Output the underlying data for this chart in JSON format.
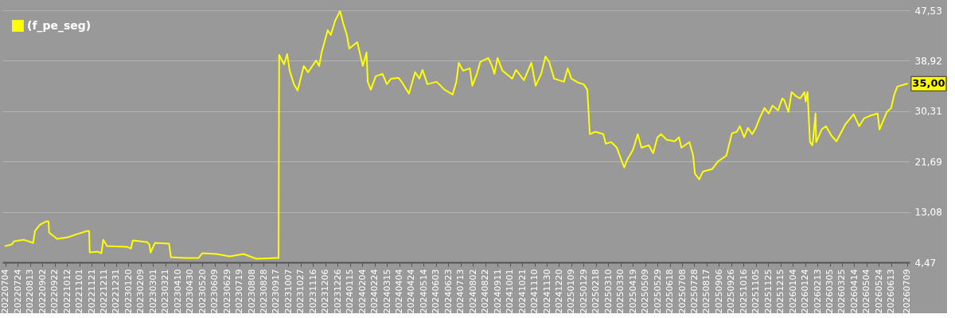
{
  "chart_data": {
    "type": "line",
    "series": [
      {
        "name": "(f_pe_seg)",
        "color": "#ffff00",
        "x": [
          "2022-07-04",
          "2022-07-14",
          "2022-07-18",
          "2022-08-03",
          "2022-08-18",
          "2022-08-21",
          "2022-08-29",
          "2022-09-08",
          "2022-09-12",
          "2022-09-13",
          "2022-09-26",
          "2022-10-13",
          "2022-10-28",
          "2022-11-14",
          "2022-11-17",
          "2022-11-18",
          "2022-12-01",
          "2022-12-07",
          "2022-12-10",
          "2022-12-16",
          "2023-01-18",
          "2023-01-24",
          "2023-01-27",
          "2023-02-19",
          "2023-02-23",
          "2023-02-25",
          "2023-03-04",
          "2023-03-27",
          "2023-03-30",
          "2023-04-22",
          "2023-05-14",
          "2023-05-20",
          "2023-06-12",
          "2023-07-04",
          "2023-07-26",
          "2023-08-16",
          "2023-09-17",
          "2023-09-21",
          "2023-09-22",
          "2023-09-30",
          "2023-10-05",
          "2023-10-09",
          "2023-10-16",
          "2023-10-22",
          "2023-11-01",
          "2023-11-08",
          "2023-11-21",
          "2023-11-26",
          "2023-11-30",
          "2023-12-06",
          "2023-12-10",
          "2023-12-15",
          "2023-12-22",
          "2023-12-30",
          "2024-01-04",
          "2024-01-10",
          "2024-01-14",
          "2024-01-27",
          "2024-02-05",
          "2024-02-11",
          "2024-02-13",
          "2024-02-18",
          "2024-02-26",
          "2024-03-08",
          "2024-03-15",
          "2024-03-22",
          "2024-04-03",
          "2024-04-09",
          "2024-04-20",
          "2024-04-30",
          "2024-05-07",
          "2024-05-12",
          "2024-05-20",
          "2024-06-04",
          "2024-06-17",
          "2024-06-30",
          "2024-07-06",
          "2024-07-10",
          "2024-07-17",
          "2024-07-28",
          "2024-08-01",
          "2024-08-08",
          "2024-08-14",
          "2024-08-27",
          "2024-09-02",
          "2024-09-06",
          "2024-09-11",
          "2024-09-19",
          "2024-10-05",
          "2024-10-11",
          "2024-10-24",
          "2024-11-05",
          "2024-11-12",
          "2024-11-21",
          "2024-11-28",
          "2024-12-04",
          "2024-12-12",
          "2024-12-28",
          "2025-01-03",
          "2025-01-09",
          "2025-01-20",
          "2025-01-29",
          "2025-02-04",
          "2025-02-08",
          "2025-02-17",
          "2025-03-02",
          "2025-03-06",
          "2025-03-15",
          "2025-03-24",
          "2025-04-01",
          "2025-04-05",
          "2025-04-10",
          "2025-04-19",
          "2025-04-27",
          "2025-05-03",
          "2025-05-15",
          "2025-05-22",
          "2025-05-29",
          "2025-06-04",
          "2025-06-13",
          "2025-06-26",
          "2025-07-03",
          "2025-07-07",
          "2025-07-20",
          "2025-07-26",
          "2025-07-29",
          "2025-08-05",
          "2025-08-11",
          "2025-08-26",
          "2025-09-05",
          "2025-09-18",
          "2025-09-27",
          "2025-10-05",
          "2025-10-10",
          "2025-10-17",
          "2025-10-23",
          "2025-10-30",
          "2025-11-05",
          "2025-11-11",
          "2025-11-19",
          "2025-11-26",
          "2025-12-02",
          "2025-12-11",
          "2025-12-18",
          "2025-12-21",
          "2025-12-28",
          "2026-01-02",
          "2026-01-09",
          "2026-01-16",
          "2026-01-23",
          "2026-01-25",
          "2026-01-28",
          "2026-02-01",
          "2026-02-05",
          "2026-02-10",
          "2026-02-11",
          "2026-02-20",
          "2026-02-27",
          "2026-03-08",
          "2026-03-16",
          "2026-03-31",
          "2026-04-13",
          "2026-04-22",
          "2026-04-30",
          "2026-05-09",
          "2026-05-22",
          "2026-05-25",
          "2026-06-06",
          "2026-06-13",
          "2026-06-18",
          "2026-06-23",
          "2026-07-09"
        ],
        "values": [
          7.25,
          7.52,
          8.06,
          8.33,
          7.79,
          9.83,
          10.91,
          11.45,
          11.45,
          9.56,
          8.47,
          8.74,
          9.28,
          9.83,
          9.83,
          6.17,
          6.3,
          6.03,
          8.33,
          7.25,
          7.11,
          6.84,
          8.2,
          7.93,
          7.52,
          6.17,
          7.79,
          7.66,
          5.35,
          5.22,
          5.22,
          6.03,
          5.89,
          5.49,
          5.89,
          5.08,
          5.22,
          5.22,
          39.93,
          38.3,
          40.07,
          37.22,
          34.91,
          33.83,
          38.03,
          36.95,
          38.98,
          38.03,
          40.34,
          42.64,
          44.13,
          43.32,
          45.76,
          47.39,
          45.35,
          43.32,
          41.01,
          42.1,
          38.03,
          40.34,
          35.32,
          33.96,
          36.27,
          36.68,
          34.91,
          35.86,
          36.0,
          35.18,
          33.29,
          36.95,
          35.86,
          37.35,
          34.91,
          35.32,
          33.96,
          33.15,
          35.32,
          38.57,
          37.22,
          37.62,
          34.64,
          36.54,
          38.71,
          39.39,
          38.03,
          36.68,
          39.39,
          37.22,
          35.86,
          37.35,
          35.59,
          38.57,
          34.64,
          36.68,
          39.66,
          38.71,
          35.86,
          35.32,
          37.62,
          35.86,
          35.18,
          34.91,
          33.96,
          26.37,
          26.78,
          26.37,
          24.74,
          25.01,
          24.06,
          21.76,
          20.67,
          22.03,
          23.66,
          26.37,
          24.06,
          24.47,
          23.12,
          25.83,
          26.37,
          25.42,
          25.15,
          25.83,
          24.06,
          25.01,
          22.71,
          19.59,
          18.64,
          20.0,
          20.4,
          21.76,
          22.71,
          26.51,
          26.78,
          27.73,
          25.83,
          27.45,
          26.37,
          27.45,
          29.08,
          30.84,
          29.9,
          31.25,
          30.44,
          32.47,
          32.2,
          30.17,
          33.56,
          32.88,
          32.47,
          33.56,
          31.93,
          33.56,
          25.01,
          24.47,
          29.9,
          25.01,
          27.18,
          27.73,
          26.1,
          25.15,
          28.13,
          29.76,
          27.73,
          29.08,
          29.49,
          29.9,
          27.18,
          30.17,
          30.84,
          33.15,
          34.51,
          35.0
        ]
      }
    ],
    "ylim": [
      4.47,
      47.53
    ],
    "yticks": [
      {
        "value": 4.47,
        "label": "4,47"
      },
      {
        "value": 13.08,
        "label": "13,08"
      },
      {
        "value": 21.69,
        "label": "21,69"
      },
      {
        "value": 30.31,
        "label": "30,31"
      },
      {
        "value": 38.92,
        "label": "38,92"
      },
      {
        "value": 47.53,
        "label": "47,53"
      }
    ],
    "xlim": [
      "2022-06-29",
      "2026-07-13"
    ],
    "xticks": [
      {
        "value": "2022-07-04",
        "label": "20220704"
      },
      {
        "value": "2022-07-24",
        "label": "20220724"
      },
      {
        "value": "2022-08-13",
        "label": "20220813"
      },
      {
        "value": "2022-09-02",
        "label": "20220902"
      },
      {
        "value": "2022-09-22",
        "label": "20220922"
      },
      {
        "value": "2022-10-12",
        "label": "20221012"
      },
      {
        "value": "2022-11-01",
        "label": "20221101"
      },
      {
        "value": "2022-11-21",
        "label": "20221121"
      },
      {
        "value": "2022-12-11",
        "label": "20221211"
      },
      {
        "value": "2022-12-31",
        "label": "20221231"
      },
      {
        "value": "2023-01-20",
        "label": "20230120"
      },
      {
        "value": "2023-02-09",
        "label": "20230209"
      },
      {
        "value": "2023-03-01",
        "label": "20230301"
      },
      {
        "value": "2023-03-21",
        "label": "20230321"
      },
      {
        "value": "2023-04-10",
        "label": "20230410"
      },
      {
        "value": "2023-04-30",
        "label": "20230430"
      },
      {
        "value": "2023-05-20",
        "label": "20230520"
      },
      {
        "value": "2023-06-09",
        "label": "20230609"
      },
      {
        "value": "2023-06-29",
        "label": "20230629"
      },
      {
        "value": "2023-07-19",
        "label": "20230719"
      },
      {
        "value": "2023-08-08",
        "label": "20230808"
      },
      {
        "value": "2023-08-28",
        "label": "20230828"
      },
      {
        "value": "2023-09-17",
        "label": "20230917"
      },
      {
        "value": "2023-10-07",
        "label": "20231007"
      },
      {
        "value": "2023-10-27",
        "label": "20231027"
      },
      {
        "value": "2023-11-16",
        "label": "20231116"
      },
      {
        "value": "2023-12-06",
        "label": "20231206"
      },
      {
        "value": "2023-12-26",
        "label": "20231226"
      },
      {
        "value": "2024-01-15",
        "label": "20240115"
      },
      {
        "value": "2024-02-04",
        "label": "20240204"
      },
      {
        "value": "2024-02-24",
        "label": "20240224"
      },
      {
        "value": "2024-03-15",
        "label": "20240315"
      },
      {
        "value": "2024-04-04",
        "label": "20240404"
      },
      {
        "value": "2024-04-24",
        "label": "20240424"
      },
      {
        "value": "2024-05-14",
        "label": "20240514"
      },
      {
        "value": "2024-06-03",
        "label": "20240603"
      },
      {
        "value": "2024-06-23",
        "label": "20240623"
      },
      {
        "value": "2024-07-13",
        "label": "20240713"
      },
      {
        "value": "2024-08-02",
        "label": "20240802"
      },
      {
        "value": "2024-08-22",
        "label": "20240822"
      },
      {
        "value": "2024-09-11",
        "label": "20240911"
      },
      {
        "value": "2024-10-01",
        "label": "20241001"
      },
      {
        "value": "2024-10-21",
        "label": "20241021"
      },
      {
        "value": "2024-11-10",
        "label": "20241110"
      },
      {
        "value": "2024-11-30",
        "label": "20241130"
      },
      {
        "value": "2024-12-20",
        "label": "20241220"
      },
      {
        "value": "2025-01-09",
        "label": "20250109"
      },
      {
        "value": "2025-01-29",
        "label": "20250129"
      },
      {
        "value": "2025-02-18",
        "label": "20250218"
      },
      {
        "value": "2025-03-10",
        "label": "20250310"
      },
      {
        "value": "2025-03-30",
        "label": "20250330"
      },
      {
        "value": "2025-04-19",
        "label": "20250419"
      },
      {
        "value": "2025-05-09",
        "label": "20250509"
      },
      {
        "value": "2025-05-29",
        "label": "20250529"
      },
      {
        "value": "2025-06-18",
        "label": "20250618"
      },
      {
        "value": "2025-07-08",
        "label": "20250708"
      },
      {
        "value": "2025-07-28",
        "label": "20250728"
      },
      {
        "value": "2025-08-17",
        "label": "20250817"
      },
      {
        "value": "2025-09-06",
        "label": "20250906"
      },
      {
        "value": "2025-09-26",
        "label": "20250926"
      },
      {
        "value": "2025-10-16",
        "label": "20251016"
      },
      {
        "value": "2025-11-05",
        "label": "20251105"
      },
      {
        "value": "2025-11-25",
        "label": "20251125"
      },
      {
        "value": "2025-12-15",
        "label": "20251215"
      },
      {
        "value": "2026-01-04",
        "label": "20260104"
      },
      {
        "value": "2026-01-24",
        "label": "20260124"
      },
      {
        "value": "2026-02-13",
        "label": "20260213"
      },
      {
        "value": "2026-03-05",
        "label": "20260305"
      },
      {
        "value": "2026-03-25",
        "label": "20260325"
      },
      {
        "value": "2026-04-14",
        "label": "20260414"
      },
      {
        "value": "2026-05-04",
        "label": "20260504"
      },
      {
        "value": "2026-05-24",
        "label": "20260524"
      },
      {
        "value": "2026-06-13",
        "label": "20260613"
      },
      {
        "value": "2026-07-09",
        "label": "20260709"
      }
    ],
    "annotations": [
      {
        "text": "35,00",
        "x": "2026-07-09",
        "y": 35.0
      }
    ],
    "grid": "y",
    "legend": "top left",
    "marker": "none",
    "line_style": "solid"
  }
}
